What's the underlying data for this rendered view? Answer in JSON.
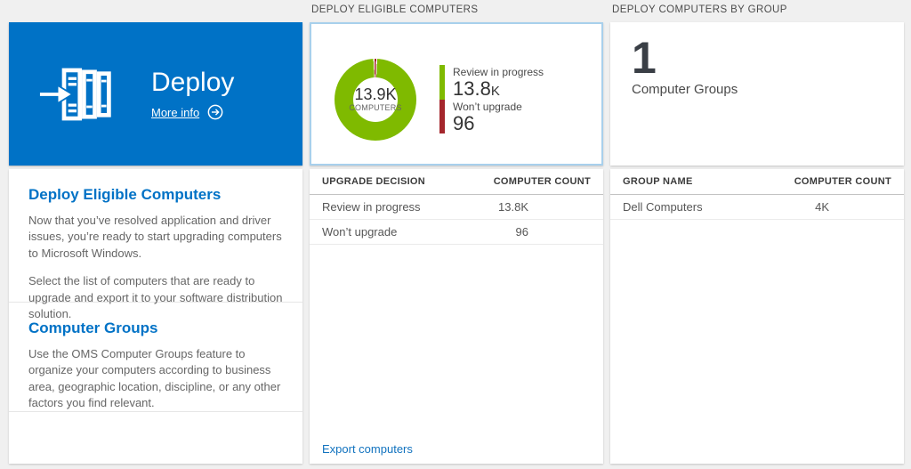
{
  "colors": {
    "tile_blue": "#0072c6",
    "bar_blue": "#1273bf",
    "green": "#7fba00",
    "red": "#a4262c"
  },
  "left_panel": {
    "tile": {
      "title": "Deploy",
      "more_info": "More info"
    },
    "sections": [
      {
        "heading": "Deploy Eligible Computers",
        "paragraphs": [
          "Now that you’ve resolved application and driver issues, you’re ready to start upgrading computers to Microsoft Windows.",
          "Select the list of computers that are ready to upgrade and export it to your software distribution solution."
        ]
      },
      {
        "heading": "Computer Groups",
        "paragraphs": [
          "Use the OMS Computer Groups feature to organize your computers according to business area, geographic location, discipline, or any other factors you find relevant."
        ]
      }
    ]
  },
  "middle_panel": {
    "header": "DEPLOY ELIGIBLE COMPUTERS",
    "donut": {
      "center_value": "13.9K",
      "center_label": "COMPUTERS"
    },
    "legend": [
      {
        "label": "Review in progress",
        "value": "13.8",
        "suffix": "K",
        "color": "#7fba00"
      },
      {
        "label": "Won’t upgrade",
        "value": "96",
        "suffix": "",
        "color": "#a4262c"
      }
    ],
    "table": {
      "columns": [
        "UPGRADE DECISION",
        "COMPUTER COUNT"
      ],
      "rows": [
        {
          "label": "Review in progress",
          "value": "13.8K",
          "bar_pct": 100
        },
        {
          "label": "Won’t upgrade",
          "value": "96",
          "bar_pct": 3
        }
      ]
    },
    "footer_link": "Export computers"
  },
  "right_panel": {
    "header": "DEPLOY COMPUTERS BY GROUP",
    "summary": {
      "value": "1",
      "label": "Computer Groups"
    },
    "table": {
      "columns": [
        "GROUP NAME",
        "COMPUTER COUNT"
      ],
      "rows": [
        {
          "label": "Dell Computers",
          "value": "4K",
          "bar_pct": 76
        }
      ]
    }
  },
  "chart_data": {
    "type": "pie",
    "title": "Deploy Eligible Computers",
    "categories": [
      "Review in progress",
      "Won’t upgrade"
    ],
    "values": [
      13800,
      96
    ],
    "colors": [
      "#7fba00",
      "#a4262c"
    ],
    "center_total_value": "13.9K",
    "center_total_label": "COMPUTERS",
    "legend_position": "right"
  }
}
